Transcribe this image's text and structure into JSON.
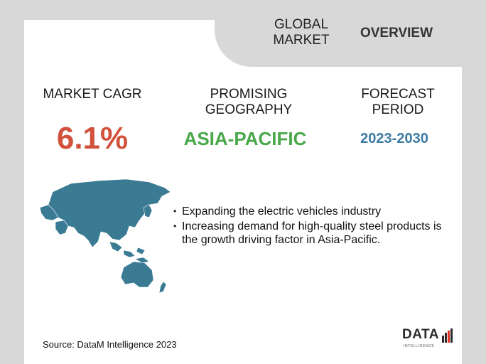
{
  "header": {
    "global_market": "GLOBAL MARKET",
    "overview": "OVERVIEW"
  },
  "stats": {
    "cagr": {
      "label": "MARKET CAGR",
      "value": "6.1%",
      "color": "#d2513b"
    },
    "geography": {
      "label": "PROMISING GEOGRAPHY",
      "value": "ASIA-PACIFIC",
      "color": "#49a84a"
    },
    "period": {
      "label": "FORECAST PERIOD",
      "value": "2023-2030",
      "color": "#3c7ba3"
    }
  },
  "map": {
    "icon": "asia-pacific-map-icon",
    "color": "#3a7a93"
  },
  "bullets": [
    "Expanding the electric vehicles industry",
    "Increasing demand for high-quality steel products is the growth driving factor in Asia-Pacific."
  ],
  "source": "Source: DataM Intelligence  2023",
  "logo": {
    "name": "DATA",
    "sub": "INTELLIGENCE"
  }
}
